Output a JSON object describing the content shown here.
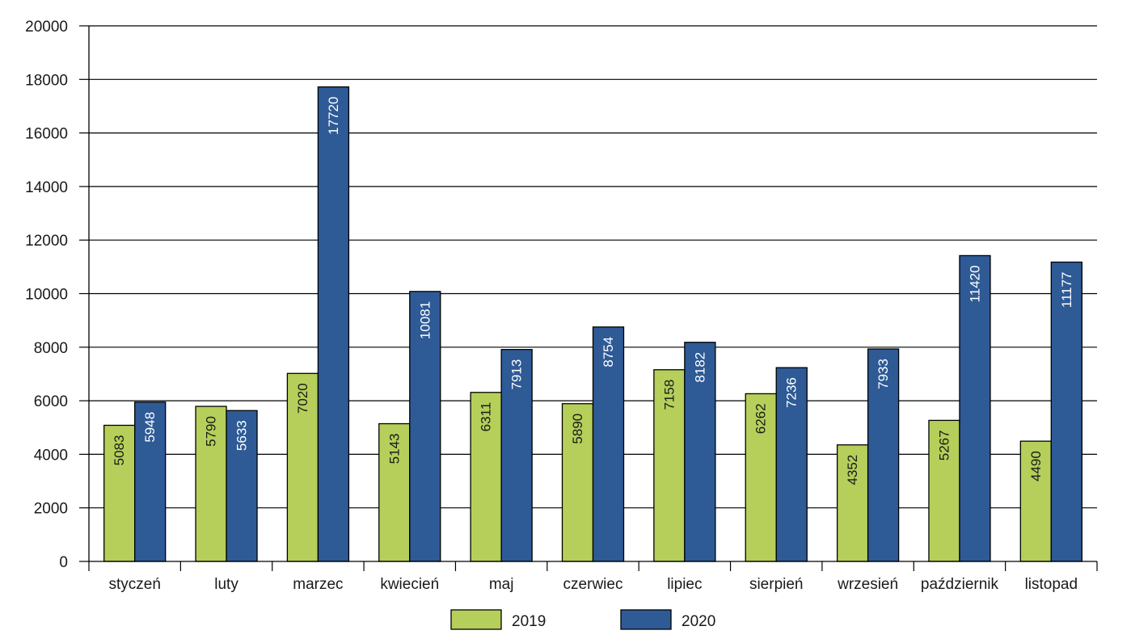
{
  "chart_data": {
    "type": "bar",
    "categories": [
      "styczeń",
      "luty",
      "marzec",
      "kwiecień",
      "maj",
      "czerwiec",
      "lipiec",
      "sierpień",
      "wrzesień",
      "październik",
      "listopad"
    ],
    "series": [
      {
        "name": "2019",
        "color": "#b5cf5a",
        "label_color": "#1a1a1a",
        "values": [
          5083,
          5790,
          7020,
          5143,
          6311,
          5890,
          7158,
          6262,
          4352,
          5267,
          4490
        ]
      },
      {
        "name": "2020",
        "color": "#2e5a96",
        "label_color": "#ffffff",
        "values": [
          5948,
          5633,
          17720,
          10081,
          7913,
          8754,
          8182,
          7236,
          7933,
          11420,
          11177
        ]
      }
    ],
    "title": "",
    "xlabel": "",
    "ylabel": "",
    "ylim": [
      0,
      20000
    ],
    "yticks": [
      0,
      2000,
      4000,
      6000,
      8000,
      10000,
      12000,
      14000,
      16000,
      18000,
      20000
    ],
    "grid": true,
    "legend": "bottom-center",
    "data_labels": "vertical-inside"
  }
}
